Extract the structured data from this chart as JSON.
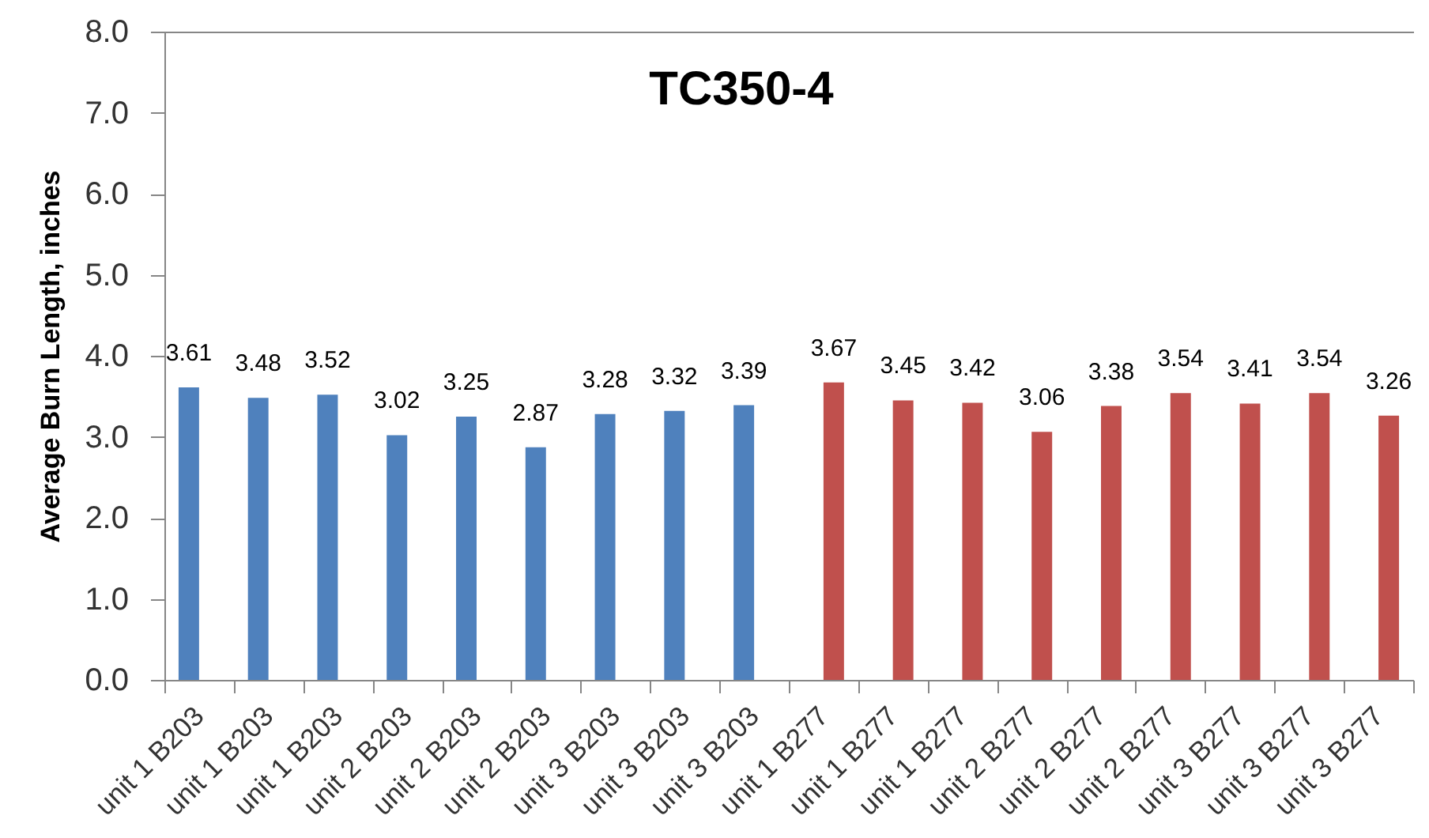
{
  "chart_data": {
    "type": "bar",
    "title": "TC350-4",
    "ylabel": "Average Burn Length, inches",
    "categories": [
      "unit 1 B203",
      "unit 1 B203",
      "unit 1 B203",
      "unit 2 B203",
      "unit 2 B203",
      "unit 2 B203",
      "unit 3 B203",
      "unit 3 B203",
      "unit 3 B203",
      "unit 1 B277",
      "unit 1 B277",
      "unit 1 B277",
      "unit 2 B277",
      "unit 2 B277",
      "unit 2 B277",
      "unit 3 B277",
      "unit 3 B277",
      "unit 3 B277"
    ],
    "series": [
      {
        "color": "#4f81bd",
        "values": [
          3.61,
          3.48,
          3.52,
          3.02,
          3.25,
          2.87,
          3.28,
          3.32,
          3.39,
          null,
          null,
          null,
          null,
          null,
          null,
          null,
          null,
          null
        ]
      },
      {
        "color": "#c0504d",
        "values": [
          null,
          null,
          null,
          null,
          null,
          null,
          null,
          null,
          null,
          3.67,
          3.45,
          3.42,
          3.06,
          3.38,
          3.54,
          3.41,
          3.54,
          3.26
        ]
      }
    ],
    "ylim": [
      0,
      8
    ],
    "yticks": [
      {
        "value": 0,
        "label": "0.0"
      },
      {
        "value": 1,
        "label": "1.0"
      },
      {
        "value": 2,
        "label": "2.0"
      },
      {
        "value": 3,
        "label": "3.0"
      },
      {
        "value": 4,
        "label": "4.0"
      },
      {
        "value": 5,
        "label": "5.0"
      },
      {
        "value": 6,
        "label": "6.0"
      },
      {
        "value": 7,
        "label": "7.0"
      },
      {
        "value": 8,
        "label": "8.0"
      }
    ],
    "data_labels": true,
    "grid": false,
    "legend": false
  }
}
